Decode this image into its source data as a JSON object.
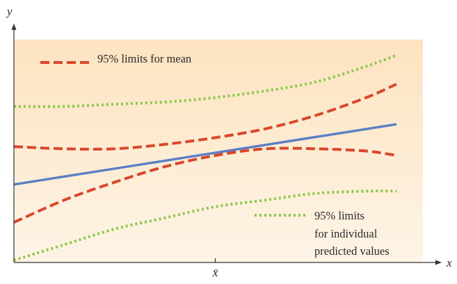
{
  "chart_data": {
    "type": "line",
    "title": "",
    "xlabel": "x",
    "ylabel": "y",
    "x_ticks": [
      {
        "value": 0,
        "label": "x̄"
      }
    ],
    "xlim": [
      -1,
      0.9
    ],
    "ylim": [
      0,
      1
    ],
    "grid": false,
    "legend": [
      {
        "label": "95% limits for mean",
        "style": "dashed",
        "color": "#d9472b",
        "placement": "top-left"
      },
      {
        "label_lines": [
          "95% limits",
          "for individual",
          "predicted values"
        ],
        "style": "dotted",
        "color": "#8cc84b",
        "placement": "bottom-right"
      }
    ],
    "series": [
      {
        "role": "regression-line",
        "style": "solid",
        "color": "#5b7fc4",
        "x": [
          -1,
          0.9
        ],
        "y": [
          0.35,
          0.62
        ]
      },
      {
        "role": "mean-limit-upper",
        "style": "dashed",
        "color": "#d9472b",
        "x": [
          -1,
          -0.75,
          -0.5,
          -0.25,
          0,
          0.25,
          0.5,
          0.75,
          0.9
        ],
        "y": [
          0.52,
          0.51,
          0.51,
          0.53,
          0.56,
          0.6,
          0.66,
          0.74,
          0.8
        ]
      },
      {
        "role": "mean-limit-lower",
        "style": "dashed",
        "color": "#d9472b",
        "x": [
          -1,
          -0.75,
          -0.5,
          -0.25,
          0,
          0.25,
          0.5,
          0.75,
          0.9
        ],
        "y": [
          0.18,
          0.28,
          0.36,
          0.43,
          0.48,
          0.51,
          0.51,
          0.5,
          0.48
        ]
      },
      {
        "role": "prediction-limit-upper",
        "style": "dotted",
        "color": "#8cc84b",
        "x": [
          -1,
          -0.75,
          -0.5,
          -0.25,
          0,
          0.25,
          0.5,
          0.75,
          0.9
        ],
        "y": [
          0.7,
          0.7,
          0.71,
          0.72,
          0.74,
          0.77,
          0.81,
          0.88,
          0.93
        ]
      },
      {
        "role": "prediction-limit-lower",
        "style": "dotted",
        "color": "#8cc84b",
        "x": [
          -1,
          -0.75,
          -0.5,
          -0.25,
          0,
          0.25,
          0.5,
          0.75,
          0.9
        ],
        "y": [
          0.01,
          0.08,
          0.15,
          0.2,
          0.25,
          0.28,
          0.31,
          0.32,
          0.32
        ]
      }
    ]
  },
  "colors": {
    "panel_fill_top": "#fde3c0",
    "panel_fill_bottom": "#fdf4e6",
    "axis": "#333333"
  }
}
